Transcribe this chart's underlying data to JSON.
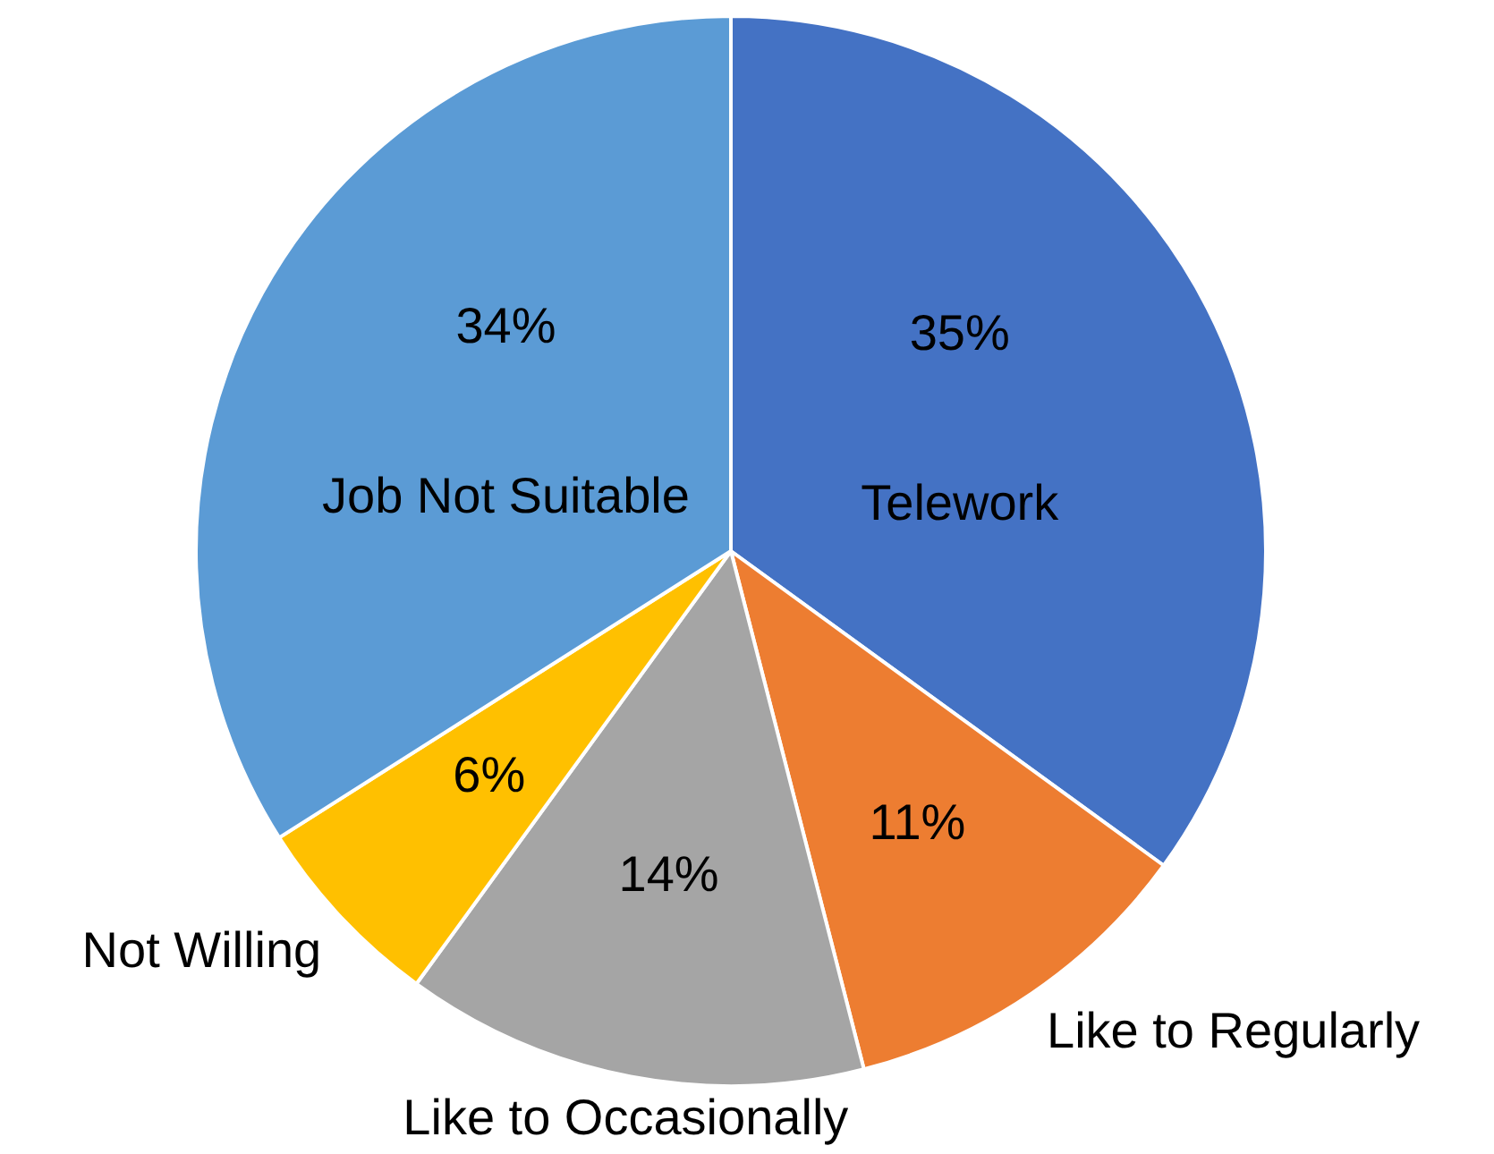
{
  "chart_data": {
    "type": "pie",
    "categories": [
      "Telework",
      "Like to Regularly",
      "Like to Occasionally",
      "Not Willing",
      "Job Not Suitable"
    ],
    "values": [
      35,
      11,
      14,
      6,
      34
    ],
    "colors": [
      "#4472c4",
      "#ed7d31",
      "#a5a5a5",
      "#ffc000",
      "#5b9bd5"
    ],
    "value_labels": [
      "35%",
      "11%",
      "14%",
      "6%",
      "34%"
    ],
    "legend": false
  }
}
